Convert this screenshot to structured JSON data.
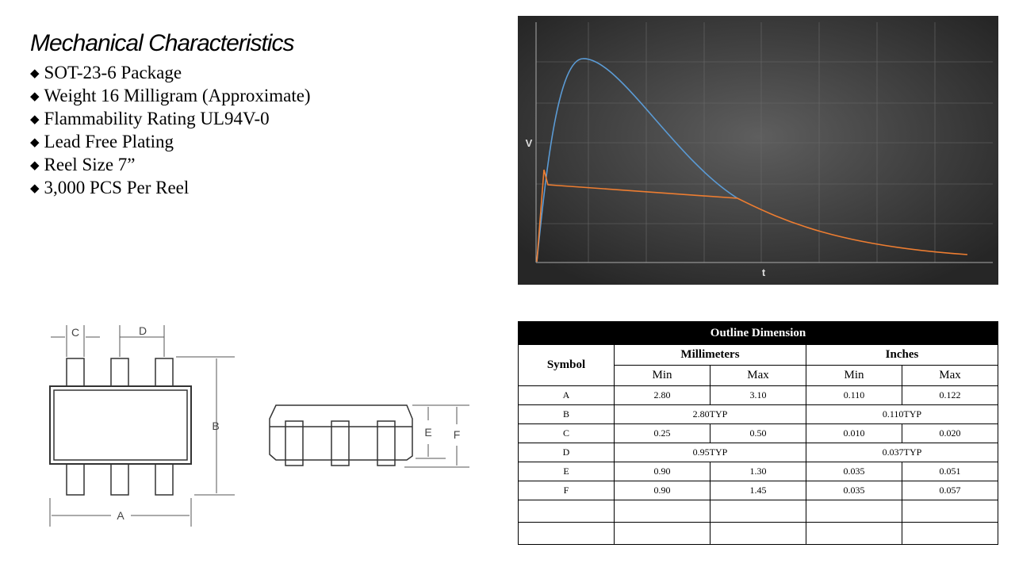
{
  "title": "Mechanical Characteristics",
  "bullets": [
    "SOT-23-6 Package",
    "Weight 16 Milligram (Approximate)",
    "Flammability Rating UL94V-0",
    "Lead Free Plating",
    "Reel Size 7”",
    "3,000 PCS Per Reel"
  ],
  "graph": {
    "y_label": "V",
    "x_label": "t"
  },
  "drawing": {
    "labels": [
      "C",
      "D",
      "B",
      "A",
      "E",
      "F"
    ]
  },
  "table": {
    "title": "Outline Dimension",
    "symbol": "Symbol",
    "groups": [
      "Millimeters",
      "Inches"
    ],
    "subheaders": [
      "Min",
      "Max",
      "Min",
      "Max"
    ],
    "rows": [
      [
        "A",
        "2.80",
        "3.10",
        "0.110",
        "0.122"
      ],
      [
        "B",
        "2.80TYP",
        "0.110TYP"
      ],
      [
        "C",
        "0.25",
        "0.50",
        "0.010",
        "0.020"
      ],
      [
        "D",
        "0.95TYP",
        "0.037TYP"
      ],
      [
        "E",
        "0.90",
        "1.30",
        "0.035",
        "0.051"
      ],
      [
        "F",
        "0.90",
        "1.45",
        "0.035",
        "0.057"
      ]
    ]
  }
}
